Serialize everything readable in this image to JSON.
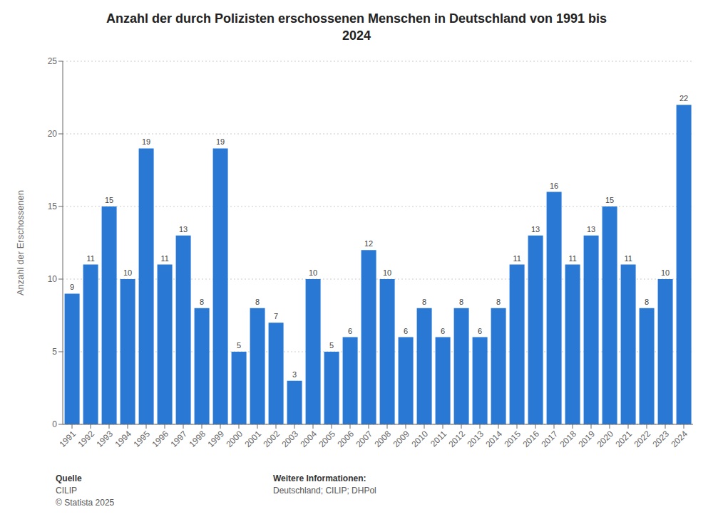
{
  "chart_data": {
    "type": "bar",
    "title": "Anzahl der durch Polizisten erschossenen Menschen in Deutschland von 1991 bis\n2024",
    "ylabel": "Anzahl der Erschossenen",
    "categories": [
      "1991",
      "1992",
      "1993",
      "1994",
      "1995",
      "1996",
      "1997",
      "1998",
      "1999",
      "2000",
      "2001",
      "2002",
      "2003",
      "2004",
      "2005",
      "2006",
      "2007",
      "2008",
      "2009",
      "2010",
      "2011",
      "2012",
      "2013",
      "2014",
      "2015",
      "2016",
      "2017",
      "2018",
      "2019",
      "2020",
      "2021",
      "2022",
      "2023",
      "2024"
    ],
    "values": [
      9,
      11,
      15,
      10,
      19,
      11,
      13,
      8,
      19,
      5,
      8,
      7,
      3,
      10,
      5,
      6,
      12,
      10,
      6,
      8,
      6,
      8,
      6,
      8,
      11,
      13,
      16,
      11,
      13,
      15,
      11,
      8,
      10,
      22
    ],
    "color": "#2878d4",
    "ylim": [
      0,
      25
    ],
    "yticks": [
      0,
      5,
      10,
      15,
      20,
      25
    ],
    "grid": true,
    "data_labels": true,
    "annotations": [
      "Quelle",
      "CILIP",
      "© Statista 2025",
      "Weitere Informationen:",
      "Deutschland; CILIP; DHPol"
    ]
  }
}
